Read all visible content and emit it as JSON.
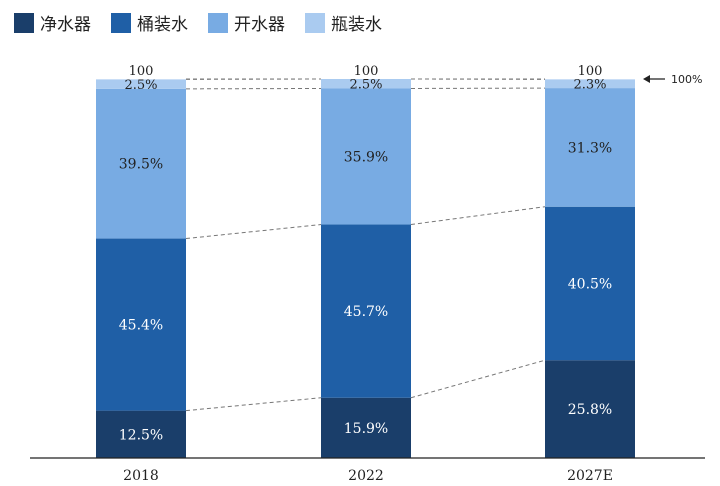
{
  "chart_data": {
    "type": "bar",
    "stacked": true,
    "categories": [
      "2018",
      "2022",
      "2027E"
    ],
    "series": [
      {
        "name": "净水器",
        "color": "#1a3e6a",
        "values": [
          12.5,
          15.9,
          25.8
        ],
        "labels": [
          "12.5%",
          "15.9%",
          "25.8%"
        ]
      },
      {
        "name": "桶装水",
        "color": "#1f5fa6",
        "values": [
          45.4,
          45.7,
          40.5
        ],
        "labels": [
          "45.4%",
          "45.7%",
          "40.5%"
        ]
      },
      {
        "name": "开水器",
        "color": "#78abe3",
        "values": [
          39.5,
          35.9,
          31.3
        ],
        "labels": [
          "39.5%",
          "35.9%",
          "31.3%"
        ]
      },
      {
        "name": "瓶装水",
        "color": "#aacbf0",
        "values": [
          2.5,
          2.5,
          2.3
        ],
        "labels": [
          "2.5%",
          "2.5%",
          "2.3%"
        ]
      }
    ],
    "totals": [
      "100",
      "100",
      "100"
    ],
    "annotation": "100%",
    "ylim": [
      0,
      100
    ],
    "legend_position": "top-left",
    "grid": false
  }
}
